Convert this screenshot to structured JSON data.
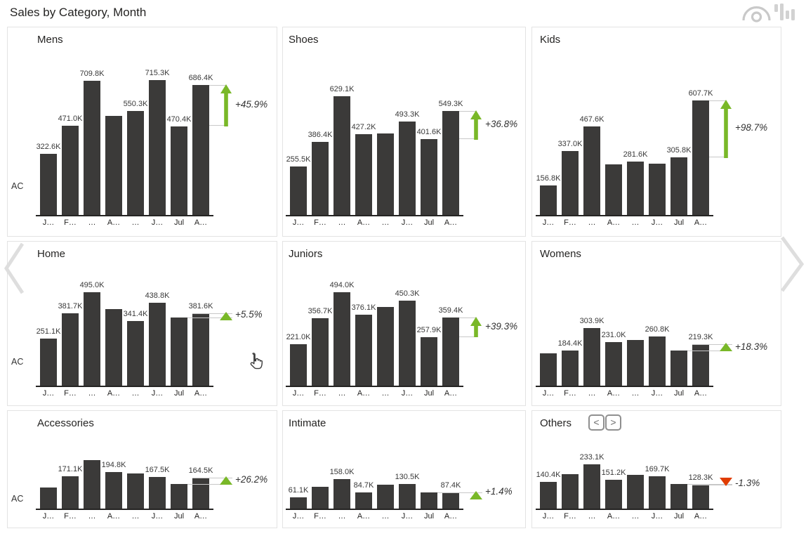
{
  "header": {
    "title": "Sales by Category, Month",
    "icons": [
      "eye-icon",
      "data-bars-icon"
    ]
  },
  "pager": {
    "prev": "chevron-left-icon",
    "next": "chevron-right-icon"
  },
  "others_nav": {
    "prev": "<",
    "next": ">"
  },
  "axis": {
    "y_label": "AC",
    "x_ticks": [
      "J…",
      "F…",
      "…",
      "A…",
      "…",
      "J…",
      "Jul",
      "A…"
    ]
  },
  "colors": {
    "bar": "#3b3a39",
    "positive": "#79b828",
    "negative": "#e03c00",
    "bracket": "#c8c8c8",
    "axis_line": "#252423",
    "panel_border": "#e3e3e3"
  },
  "chart_data": [
    {
      "name": "Mens",
      "type": "bar",
      "unit": "K",
      "categories": [
        "J…",
        "F…",
        "…",
        "A…",
        "…",
        "J…",
        "Jul",
        "A…"
      ],
      "values_k": [
        322.6,
        471.0,
        709.8,
        524.0,
        550.3,
        715.3,
        470.4,
        686.4
      ],
      "labels": [
        "322.6K",
        "471.0K",
        "709.8K",
        null,
        "550.3K",
        "715.3K",
        "470.4K",
        "686.4K"
      ],
      "change": {
        "text": "+45.9%",
        "direction": "up",
        "style": "arrow"
      }
    },
    {
      "name": "Shoes",
      "type": "bar",
      "unit": "K",
      "categories": [
        "J…",
        "F…",
        "…",
        "A…",
        "…",
        "J…",
        "Jul",
        "A…"
      ],
      "values_k": [
        255.5,
        386.4,
        629.1,
        427.2,
        432.0,
        493.3,
        401.6,
        549.3
      ],
      "labels": [
        "255.5K",
        "386.4K",
        "629.1K",
        "427.2K",
        null,
        "493.3K",
        "401.6K",
        "549.3K"
      ],
      "change": {
        "text": "+36.8%",
        "direction": "up",
        "style": "arrow"
      }
    },
    {
      "name": "Kids",
      "type": "bar",
      "unit": "K",
      "categories": [
        "J…",
        "F…",
        "…",
        "A…",
        "…",
        "J…",
        "Jul",
        "A…"
      ],
      "values_k": [
        156.8,
        337.0,
        467.6,
        268.0,
        281.6,
        272.0,
        305.8,
        607.7
      ],
      "labels": [
        "156.8K",
        "337.0K",
        "467.6K",
        null,
        "281.6K",
        null,
        "305.8K",
        "607.7K"
      ],
      "change": {
        "text": "+98.7%",
        "direction": "up",
        "style": "arrow"
      }
    },
    {
      "name": "Home",
      "type": "bar",
      "unit": "K",
      "categories": [
        "J…",
        "F…",
        "…",
        "A…",
        "…",
        "J…",
        "Jul",
        "A…"
      ],
      "values_k": [
        251.1,
        381.7,
        495.0,
        405.0,
        341.4,
        438.8,
        361.7,
        381.6
      ],
      "labels": [
        "251.1K",
        "381.7K",
        "495.0K",
        null,
        "341.4K",
        "438.8K",
        null,
        "381.6K"
      ],
      "change": {
        "text": "+5.5%",
        "direction": "up",
        "style": "triangle"
      }
    },
    {
      "name": "Juniors",
      "type": "bar",
      "unit": "K",
      "categories": [
        "J…",
        "F…",
        "…",
        "A…",
        "…",
        "J…",
        "Jul",
        "A…"
      ],
      "values_k": [
        221.0,
        356.7,
        494.0,
        376.1,
        418.0,
        450.3,
        257.9,
        359.4
      ],
      "labels": [
        "221.0K",
        "356.7K",
        "494.0K",
        "376.1K",
        null,
        "450.3K",
        "257.9K",
        "359.4K"
      ],
      "change": {
        "text": "+39.3%",
        "direction": "up",
        "style": "arrow"
      }
    },
    {
      "name": "Womens",
      "type": "bar",
      "unit": "K",
      "categories": [
        "J…",
        "F…",
        "…",
        "A…",
        "…",
        "J…",
        "Jul",
        "A…"
      ],
      "values_k": [
        170.0,
        184.4,
        303.9,
        231.0,
        243.0,
        260.8,
        185.4,
        219.3
      ],
      "labels": [
        null,
        "184.4K",
        "303.9K",
        "231.0K",
        null,
        "260.8K",
        null,
        "219.3K"
      ],
      "change": {
        "text": "+18.3%",
        "direction": "up",
        "style": "triangle"
      }
    },
    {
      "name": "Accessories",
      "type": "bar",
      "unit": "K",
      "categories": [
        "J…",
        "F…",
        "…",
        "A…",
        "…",
        "J…",
        "Jul",
        "A…"
      ],
      "values_k": [
        113.0,
        171.1,
        255.0,
        194.8,
        185.0,
        167.5,
        130.4,
        164.5
      ],
      "labels": [
        null,
        "171.1K",
        null,
        "194.8K",
        null,
        "167.5K",
        null,
        "164.5K"
      ],
      "change": {
        "text": "+26.2%",
        "direction": "up",
        "style": "triangle"
      }
    },
    {
      "name": "Intimate",
      "type": "bar",
      "unit": "K",
      "categories": [
        "J…",
        "F…",
        "…",
        "A…",
        "…",
        "J…",
        "Jul",
        "A…"
      ],
      "values_k": [
        61.1,
        114.0,
        158.0,
        84.7,
        128.0,
        130.5,
        86.2,
        87.4
      ],
      "labels": [
        "61.1K",
        null,
        "158.0K",
        "84.7K",
        null,
        "130.5K",
        null,
        "87.4K"
      ],
      "change": {
        "text": "+1.4%",
        "direction": "up",
        "style": "triangle"
      }
    },
    {
      "name": "Others",
      "type": "bar",
      "unit": "K",
      "has_nav": true,
      "categories": [
        "J…",
        "F…",
        "…",
        "A…",
        "…",
        "J…",
        "Jul",
        "A…"
      ],
      "values_k": [
        140.4,
        181.0,
        233.1,
        151.2,
        178.0,
        169.7,
        130.0,
        128.3
      ],
      "labels": [
        "140.4K",
        null,
        "233.1K",
        "151.2K",
        null,
        "169.7K",
        null,
        "128.3K"
      ],
      "change": {
        "text": "-1.3%",
        "direction": "down",
        "style": "triangle-down"
      }
    }
  ]
}
